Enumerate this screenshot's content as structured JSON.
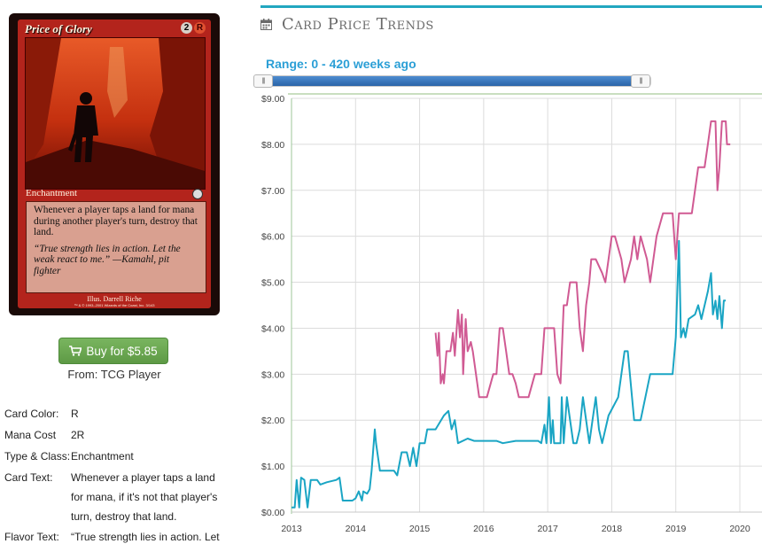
{
  "card": {
    "name": "Price of Glory",
    "mana_symbols": [
      "2",
      "R"
    ],
    "type_line": "Enchantment",
    "rules_text": "Whenever a player taps a land for mana during another player's turn, destroy that land.",
    "flavor_text": "“True strength lies in action. Let the weak react to me.” —Kamahl, pit fighter",
    "artist": "Illus. Darrell Riche",
    "copyright": "™ & © 1993–2001 Wizards of the Coast, Inc. 3/143"
  },
  "buy": {
    "label": "Buy for $5.85",
    "from": "From: TCG Player",
    "icon": "cart-icon"
  },
  "details": {
    "card_color": {
      "label": "Card Color:",
      "value": "R"
    },
    "mana_cost": {
      "label": "Mana Cost",
      "value": "2R"
    },
    "type_class": {
      "label": "Type & Class:",
      "value": "Enchantment"
    },
    "card_text": {
      "label": "Card Text:",
      "value": "Whenever a player taps a land for mana, if it's not that player's turn, destroy that land."
    },
    "flavor_text": {
      "label": "Flavor Text:",
      "value": "“True strength lies in action. Let"
    }
  },
  "trends": {
    "title": "Card Price Trends",
    "icon": "calendar-icon",
    "range_label": "Range: 0 - 420 weeks ago",
    "slider": {
      "min_weeks": 0,
      "max_weeks": 420
    }
  },
  "colors": {
    "accent": "#22a7c0",
    "buy_green": "#6aa84f",
    "series_foil": "#d05a93",
    "series_normal": "#1aa5c4",
    "card_frame_red": "#b3241c"
  },
  "chart_data": {
    "type": "line",
    "title": "",
    "xlabel": "",
    "ylabel": "",
    "xlim": [
      2013.0,
      2020.0
    ],
    "ylim": [
      0,
      9
    ],
    "x_ticks": [
      "2013",
      "2014",
      "2015",
      "2016",
      "2017",
      "2018",
      "2019",
      "2020"
    ],
    "y_ticks": [
      "$0.00",
      "$1.00",
      "$2.00",
      "$3.00",
      "$4.00",
      "$5.00",
      "$6.00",
      "$7.00",
      "$8.00",
      "$9.00"
    ],
    "grid": true,
    "legend": "none",
    "series": [
      {
        "color": "#d05a93",
        "points": [
          [
            2015.25,
            3.9
          ],
          [
            2015.28,
            3.4
          ],
          [
            2015.3,
            3.9
          ],
          [
            2015.33,
            2.8
          ],
          [
            2015.36,
            3.0
          ],
          [
            2015.38,
            2.8
          ],
          [
            2015.42,
            3.5
          ],
          [
            2015.48,
            3.5
          ],
          [
            2015.52,
            3.9
          ],
          [
            2015.55,
            3.4
          ],
          [
            2015.6,
            4.4
          ],
          [
            2015.63,
            3.8
          ],
          [
            2015.66,
            4.3
          ],
          [
            2015.68,
            3.0
          ],
          [
            2015.72,
            4.2
          ],
          [
            2015.75,
            3.5
          ],
          [
            2015.8,
            3.7
          ],
          [
            2015.83,
            3.5
          ],
          [
            2015.88,
            3.0
          ],
          [
            2015.93,
            2.5
          ],
          [
            2016.05,
            2.5
          ],
          [
            2016.15,
            3.0
          ],
          [
            2016.2,
            3.0
          ],
          [
            2016.25,
            4.0
          ],
          [
            2016.3,
            4.0
          ],
          [
            2016.35,
            3.5
          ],
          [
            2016.4,
            3.0
          ],
          [
            2016.45,
            3.0
          ],
          [
            2016.5,
            2.8
          ],
          [
            2016.55,
            2.5
          ],
          [
            2016.7,
            2.5
          ],
          [
            2016.8,
            3.0
          ],
          [
            2016.9,
            3.0
          ],
          [
            2016.95,
            4.0
          ],
          [
            2017.1,
            4.0
          ],
          [
            2017.15,
            3.0
          ],
          [
            2017.2,
            2.8
          ],
          [
            2017.25,
            4.5
          ],
          [
            2017.3,
            4.5
          ],
          [
            2017.35,
            5.0
          ],
          [
            2017.45,
            5.0
          ],
          [
            2017.5,
            4.0
          ],
          [
            2017.55,
            3.5
          ],
          [
            2017.6,
            4.5
          ],
          [
            2017.65,
            5.0
          ],
          [
            2017.68,
            5.5
          ],
          [
            2017.75,
            5.5
          ],
          [
            2017.85,
            5.2
          ],
          [
            2017.9,
            5.0
          ],
          [
            2017.95,
            5.5
          ],
          [
            2018.0,
            6.0
          ],
          [
            2018.05,
            6.0
          ],
          [
            2018.15,
            5.5
          ],
          [
            2018.2,
            5.0
          ],
          [
            2018.3,
            5.5
          ],
          [
            2018.35,
            6.0
          ],
          [
            2018.4,
            5.5
          ],
          [
            2018.45,
            6.0
          ],
          [
            2018.55,
            5.5
          ],
          [
            2018.6,
            5.0
          ],
          [
            2018.7,
            6.0
          ],
          [
            2018.8,
            6.5
          ],
          [
            2018.95,
            6.5
          ],
          [
            2019.0,
            5.5
          ],
          [
            2019.05,
            6.5
          ],
          [
            2019.25,
            6.5
          ],
          [
            2019.3,
            7.0
          ],
          [
            2019.35,
            7.5
          ],
          [
            2019.45,
            7.5
          ],
          [
            2019.5,
            8.0
          ],
          [
            2019.55,
            8.5
          ],
          [
            2019.62,
            8.5
          ],
          [
            2019.65,
            7.0
          ],
          [
            2019.68,
            7.5
          ],
          [
            2019.7,
            8.0
          ],
          [
            2019.72,
            8.5
          ],
          [
            2019.78,
            8.5
          ],
          [
            2019.8,
            8.0
          ],
          [
            2019.85,
            8.0
          ]
        ]
      },
      {
        "color": "#1aa5c4",
        "points": [
          [
            2013.0,
            0.1
          ],
          [
            2013.05,
            0.1
          ],
          [
            2013.08,
            0.7
          ],
          [
            2013.12,
            0.1
          ],
          [
            2013.15,
            0.75
          ],
          [
            2013.2,
            0.7
          ],
          [
            2013.25,
            0.1
          ],
          [
            2013.3,
            0.7
          ],
          [
            2013.4,
            0.7
          ],
          [
            2013.45,
            0.6
          ],
          [
            2013.55,
            0.65
          ],
          [
            2013.7,
            0.7
          ],
          [
            2013.75,
            0.75
          ],
          [
            2013.8,
            0.25
          ],
          [
            2013.95,
            0.25
          ],
          [
            2014.0,
            0.3
          ],
          [
            2014.05,
            0.45
          ],
          [
            2014.1,
            0.25
          ],
          [
            2014.12,
            0.45
          ],
          [
            2014.18,
            0.4
          ],
          [
            2014.22,
            0.5
          ],
          [
            2014.25,
            0.9
          ],
          [
            2014.3,
            1.8
          ],
          [
            2014.32,
            1.5
          ],
          [
            2014.38,
            0.9
          ],
          [
            2014.45,
            0.9
          ],
          [
            2014.6,
            0.9
          ],
          [
            2014.65,
            0.8
          ],
          [
            2014.72,
            1.3
          ],
          [
            2014.8,
            1.3
          ],
          [
            2014.85,
            1.0
          ],
          [
            2014.9,
            1.4
          ],
          [
            2014.95,
            1.0
          ],
          [
            2015.0,
            1.5
          ],
          [
            2015.08,
            1.5
          ],
          [
            2015.12,
            1.8
          ],
          [
            2015.25,
            1.8
          ],
          [
            2015.38,
            2.1
          ],
          [
            2015.45,
            2.2
          ],
          [
            2015.5,
            1.8
          ],
          [
            2015.55,
            2.0
          ],
          [
            2015.6,
            1.5
          ],
          [
            2015.75,
            1.6
          ],
          [
            2015.85,
            1.55
          ],
          [
            2016.0,
            1.55
          ],
          [
            2016.2,
            1.55
          ],
          [
            2016.3,
            1.5
          ],
          [
            2016.5,
            1.55
          ],
          [
            2016.7,
            1.55
          ],
          [
            2016.85,
            1.55
          ],
          [
            2016.9,
            1.5
          ],
          [
            2016.95,
            1.9
          ],
          [
            2016.98,
            1.5
          ],
          [
            2017.02,
            2.5
          ],
          [
            2017.05,
            1.5
          ],
          [
            2017.08,
            2.0
          ],
          [
            2017.1,
            1.5
          ],
          [
            2017.2,
            1.5
          ],
          [
            2017.22,
            2.5
          ],
          [
            2017.25,
            1.5
          ],
          [
            2017.3,
            2.5
          ],
          [
            2017.35,
            2.0
          ],
          [
            2017.4,
            1.5
          ],
          [
            2017.45,
            1.5
          ],
          [
            2017.5,
            1.8
          ],
          [
            2017.55,
            2.5
          ],
          [
            2017.6,
            2.0
          ],
          [
            2017.65,
            1.5
          ],
          [
            2017.7,
            2.0
          ],
          [
            2017.75,
            2.5
          ],
          [
            2017.8,
            1.8
          ],
          [
            2017.85,
            1.5
          ],
          [
            2017.9,
            1.8
          ],
          [
            2017.95,
            2.1
          ],
          [
            2018.1,
            2.5
          ],
          [
            2018.2,
            3.5
          ],
          [
            2018.25,
            3.5
          ],
          [
            2018.35,
            2.0
          ],
          [
            2018.45,
            2.0
          ],
          [
            2018.6,
            3.0
          ],
          [
            2018.95,
            3.0
          ],
          [
            2019.0,
            3.8
          ],
          [
            2019.05,
            5.9
          ],
          [
            2019.08,
            3.8
          ],
          [
            2019.12,
            4.0
          ],
          [
            2019.15,
            3.8
          ],
          [
            2019.2,
            4.2
          ],
          [
            2019.3,
            4.3
          ],
          [
            2019.35,
            4.5
          ],
          [
            2019.4,
            4.2
          ],
          [
            2019.5,
            4.8
          ],
          [
            2019.55,
            5.2
          ],
          [
            2019.58,
            4.3
          ],
          [
            2019.62,
            4.6
          ],
          [
            2019.65,
            4.2
          ],
          [
            2019.68,
            4.7
          ],
          [
            2019.72,
            4.0
          ],
          [
            2019.75,
            4.6
          ],
          [
            2019.78,
            4.6
          ]
        ]
      }
    ]
  }
}
